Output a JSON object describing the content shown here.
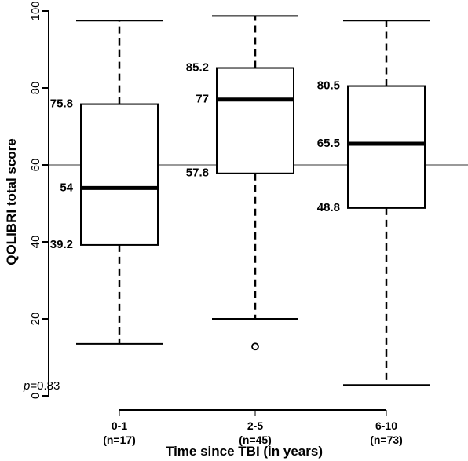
{
  "chart_data": {
    "type": "boxplot",
    "xlabel": "Time since TBI (in years)",
    "ylabel": "QOLIBRI total score",
    "ylim": [
      0,
      100
    ],
    "yticks": [
      0,
      20,
      40,
      60,
      80,
      100
    ],
    "reference_line": 60,
    "reference_line_color": "#999999",
    "categories": [
      {
        "label": "0-1",
        "n_label": "(n=17)"
      },
      {
        "label": "2-5",
        "n_label": "(n=45)"
      },
      {
        "label": "6-10",
        "n_label": "(n=73)"
      }
    ],
    "boxes": [
      {
        "whisker_low": 13.5,
        "q1": 39.2,
        "median": 54,
        "q3": 75.8,
        "whisker_high": 97.5,
        "outliers": [],
        "labels": {
          "q1": "39.2",
          "median": "54",
          "q3": "75.8"
        }
      },
      {
        "whisker_low": 20,
        "q1": 57.8,
        "median": 77,
        "q3": 85.2,
        "whisker_high": 98.7,
        "outliers": [
          12.8
        ],
        "labels": {
          "q1": "57.8",
          "median": "77",
          "q3": "85.2"
        }
      },
      {
        "whisker_low": 2.8,
        "q1": 48.8,
        "median": 65.5,
        "q3": 80.5,
        "whisker_high": 97.5,
        "outliers": [],
        "labels": {
          "q1": "48.8",
          "median": "65.5",
          "q3": "80.5"
        }
      }
    ],
    "annotation": {
      "italic": "p",
      "rest": "=0.83"
    }
  }
}
